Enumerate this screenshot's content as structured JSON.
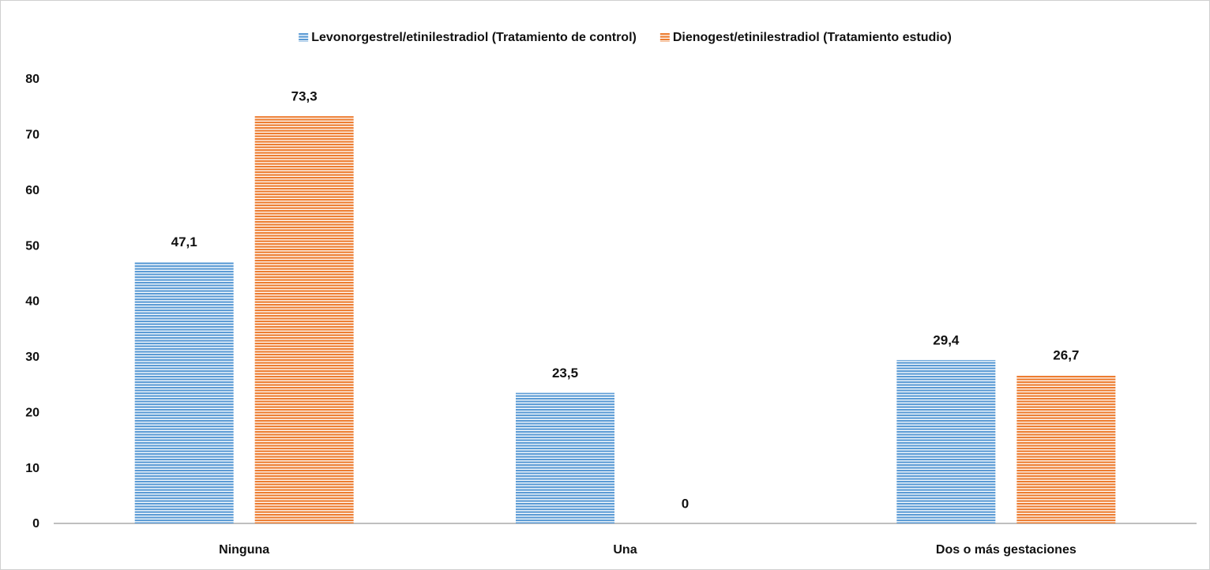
{
  "chart_data": {
    "type": "bar",
    "categories": [
      "Ninguna",
      "Una",
      "Dos o más gestaciones"
    ],
    "series": [
      {
        "name": "Levonorgestrel/etinilestradiol (Tratamiento de control)",
        "color": "#5b9bd5",
        "values": [
          47.1,
          23.5,
          29.4
        ],
        "value_labels": [
          "47,1",
          "23,5",
          "29,4"
        ]
      },
      {
        "name": "Dienogest/etinilestradiol (Tratamiento estudio)",
        "color": "#ed7d31",
        "values": [
          73.3,
          0,
          26.7
        ],
        "value_labels": [
          "73,3",
          "0",
          "26,7"
        ]
      }
    ],
    "ylim": [
      0,
      80
    ],
    "yticks": [
      0,
      10,
      20,
      30,
      40,
      50,
      60,
      70,
      80
    ],
    "grid": false,
    "legend": "top"
  }
}
